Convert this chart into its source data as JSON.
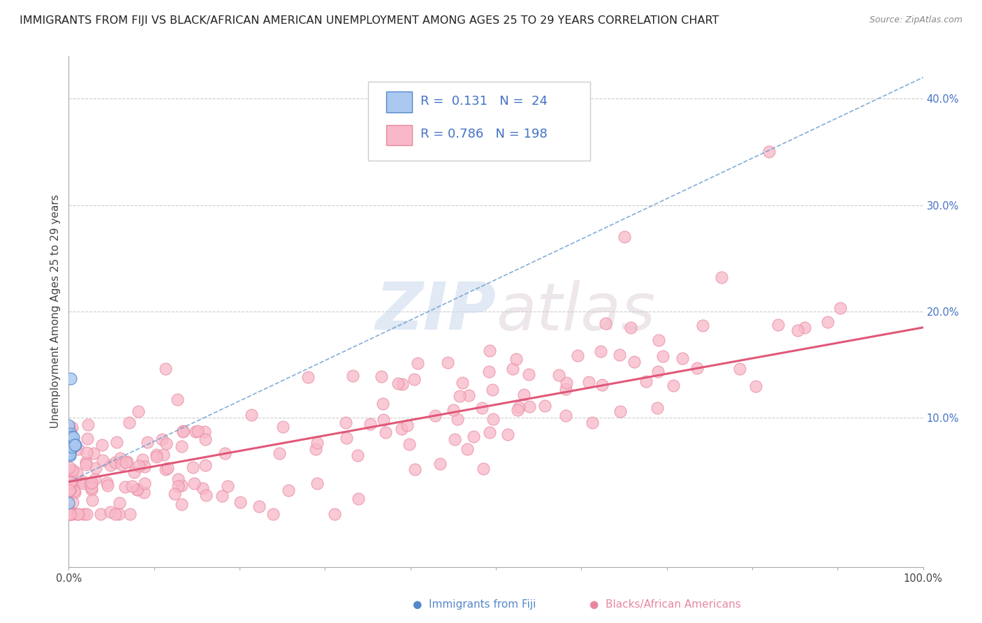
{
  "title": "IMMIGRANTS FROM FIJI VS BLACK/AFRICAN AMERICAN UNEMPLOYMENT AMONG AGES 25 TO 29 YEARS CORRELATION CHART",
  "source": "Source: ZipAtlas.com",
  "ylabel": "Unemployment Among Ages 25 to 29 years",
  "xlim": [
    0.0,
    1.0
  ],
  "ylim": [
    -0.04,
    0.44
  ],
  "x_ticks": [
    0.0,
    0.1,
    0.2,
    0.3,
    0.4,
    0.5,
    0.6,
    0.7,
    0.8,
    0.9,
    1.0
  ],
  "x_tick_labels": [
    "0.0%",
    "",
    "",
    "",
    "",
    "",
    "",
    "",
    "",
    "",
    "100.0%"
  ],
  "y_ticks": [
    0.0,
    0.1,
    0.2,
    0.3,
    0.4
  ],
  "y_tick_labels": [
    "",
    "10.0%",
    "20.0%",
    "30.0%",
    "40.0%"
  ],
  "fiji_color": "#aac8f0",
  "fiji_edge_color": "#5588cc",
  "pink_color": "#f8b8c8",
  "pink_edge_color": "#e888a0",
  "trend_blue_color": "#6699cc",
  "trend_pink_color": "#e05878",
  "fiji_R": 0.131,
  "fiji_N": 24,
  "pink_R": 0.786,
  "pink_N": 198,
  "legend_fiji_label": "Immigrants from Fiji",
  "legend_pink_label": "Blacks/African Americans",
  "watermark_ZIP": "ZIP",
  "watermark_atlas": "atlas",
  "title_fontsize": 11.5,
  "axis_label_fontsize": 11,
  "tick_fontsize": 10.5,
  "legend_fontsize": 13
}
